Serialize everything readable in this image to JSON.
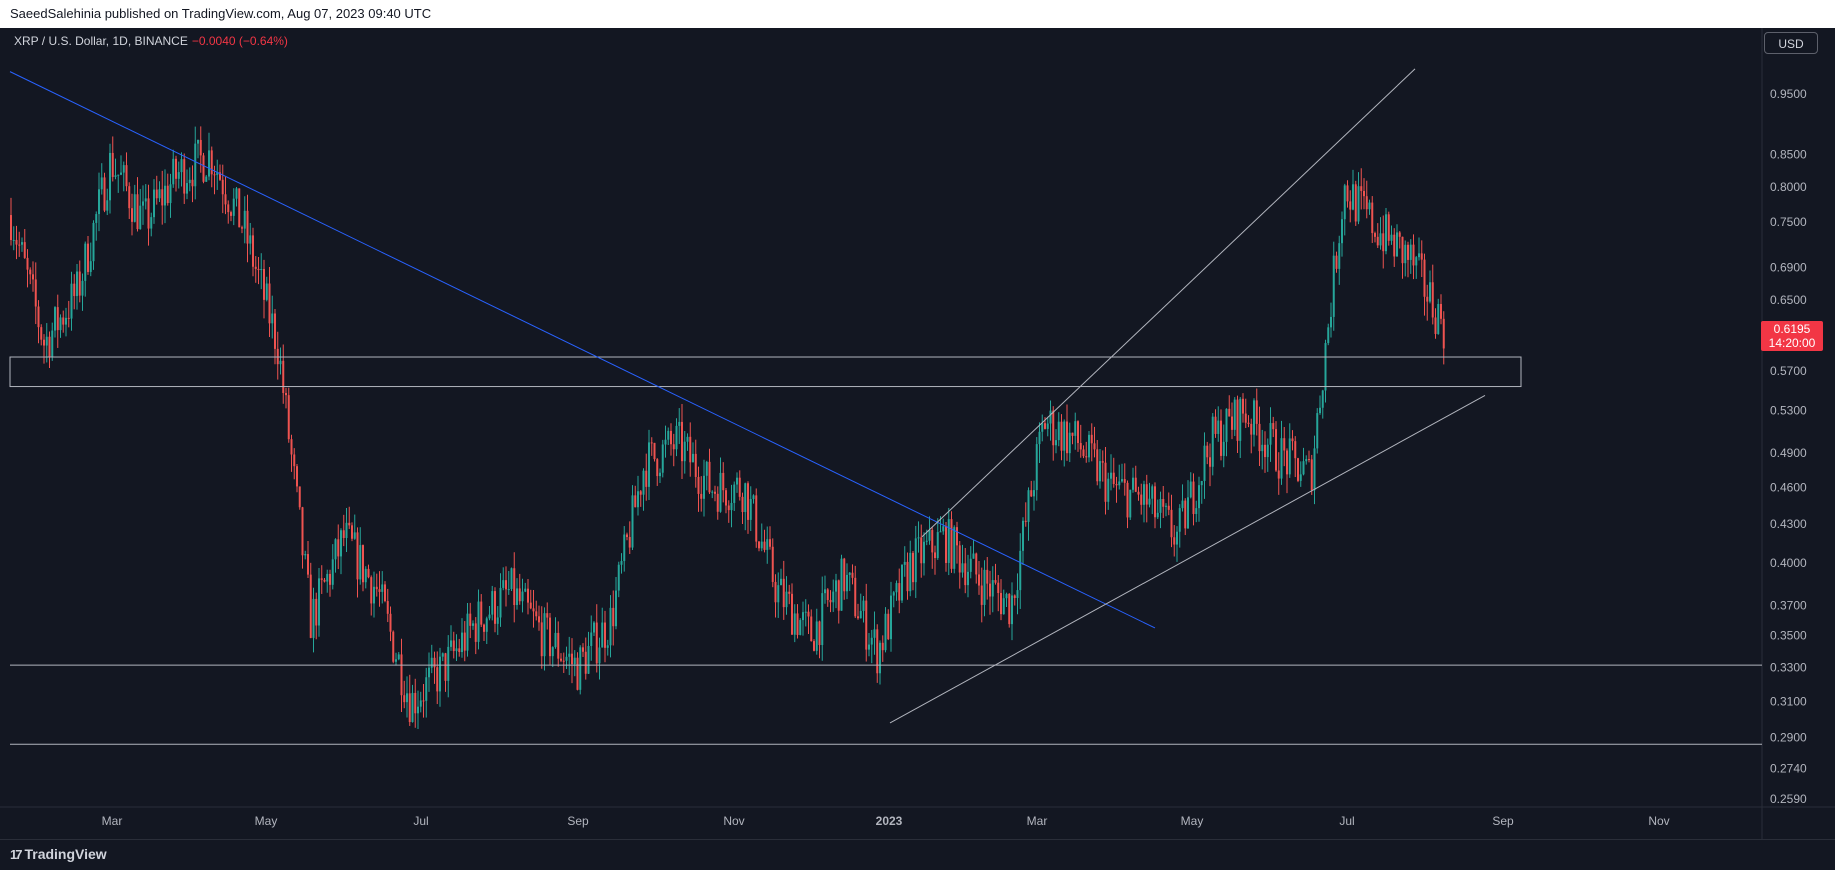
{
  "header": {
    "published": "SaeedSalehinia published on TradingView.com, Aug 07, 2023 09:40 UTC"
  },
  "symbol": {
    "name": "XRP / U.S. Dollar, 1D, BINANCE",
    "change": "−0.0040 (−0.64%)"
  },
  "currency_button": "USD",
  "price_tag": {
    "price": "0.6195",
    "countdown": "14:20:00"
  },
  "footer": {
    "brand": "TradingView",
    "logo_icon": "tradingview-logo-icon"
  },
  "colors": {
    "background": "#131722",
    "up": "#26a69a",
    "down": "#ef5350",
    "trendline": "#2962ff",
    "level": "#b2b5be",
    "price_tag": "#f23645"
  },
  "chart_data": {
    "type": "candlestick",
    "y_scale": "log",
    "ylim": [
      0.25,
      1.03
    ],
    "x_labels": [
      "Mar",
      "May",
      "Jul",
      "Sep",
      "Nov",
      "2023",
      "Mar",
      "May",
      "Jul",
      "Sep",
      "Nov"
    ],
    "y_ticks": [
      "0.9500",
      "0.8500",
      "0.8000",
      "0.7500",
      "0.6900",
      "0.6500",
      "0.5700",
      "0.5300",
      "0.4900",
      "0.4600",
      "0.4300",
      "0.4000",
      "0.3700",
      "0.3500",
      "0.3300",
      "0.3100",
      "0.2900",
      "0.2740",
      "0.2590"
    ],
    "last_price": 0.6195,
    "price_path": [
      [
        "Jan",
        0.76
      ],
      [
        "Feb",
        0.6
      ],
      [
        "Feb",
        0.66
      ],
      [
        "Mar",
        0.84
      ],
      [
        "Mar",
        0.75
      ],
      [
        "Apr",
        0.82
      ],
      [
        "Apr",
        0.85
      ],
      [
        "Apr",
        0.74
      ],
      [
        "May",
        0.6
      ],
      [
        "May",
        0.36
      ],
      [
        "May",
        0.42
      ],
      [
        "Jun",
        0.38
      ],
      [
        "Jun",
        0.31
      ],
      [
        "Jul",
        0.33
      ],
      [
        "Jul",
        0.36
      ],
      [
        "Aug",
        0.38
      ],
      [
        "Aug",
        0.35
      ],
      [
        "Sep",
        0.33
      ],
      [
        "Sep",
        0.36
      ],
      [
        "Sep",
        0.48
      ],
      [
        "Oct",
        0.5
      ],
      [
        "Oct",
        0.46
      ],
      [
        "Nov",
        0.46
      ],
      [
        "Nov",
        0.38
      ],
      [
        "Nov",
        0.35
      ],
      [
        "Dec",
        0.39
      ],
      [
        "Dec",
        0.34
      ],
      [
        "Jan",
        0.4
      ],
      [
        "Jan",
        0.42
      ],
      [
        "Feb",
        0.39
      ],
      [
        "Mar",
        0.37
      ],
      [
        "Mar",
        0.52
      ],
      [
        "Apr",
        0.5
      ],
      [
        "Apr",
        0.46
      ],
      [
        "May",
        0.45
      ],
      [
        "May",
        0.42
      ],
      [
        "Jun",
        0.5
      ],
      [
        "Jun",
        0.53
      ],
      [
        "Jun",
        0.49
      ],
      [
        "Jul",
        0.47
      ],
      [
        "Jul",
        0.8
      ],
      [
        "Jul",
        0.74
      ],
      [
        "Aug",
        0.7
      ],
      [
        "Aug",
        0.6195
      ]
    ],
    "levels": [
      {
        "name": "resistance zone",
        "top": 0.585,
        "bottom": 0.554
      },
      {
        "name": "support",
        "price": 0.3315
      },
      {
        "name": "support",
        "price": 0.2865
      }
    ],
    "trendlines": [
      {
        "name": "blue descending trendline",
        "color": "blue",
        "from": [
          "Jan",
          0.99
        ],
        "to": [
          "Mar",
          0.355
        ]
      },
      {
        "name": "ascending support",
        "color": "grey",
        "from": [
          "Jan",
          0.298
        ],
        "to": [
          "Aug",
          0.545
        ]
      },
      {
        "name": "channel upper",
        "color": "grey",
        "from": [
          "Jan",
          0.42
        ],
        "to": [
          "Aug",
          0.995
        ]
      }
    ]
  }
}
